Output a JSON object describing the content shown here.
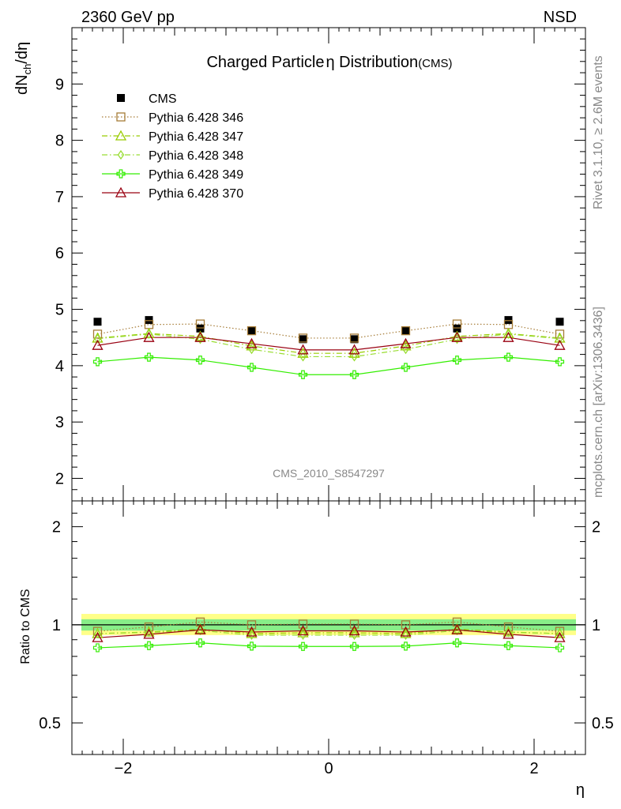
{
  "header": {
    "left": "2360 GeV pp",
    "right": "NSD"
  },
  "chart_title": {
    "main": "Charged Particle",
    "eta": "η",
    "rest": " Distribution",
    "suffix": "(CMS)"
  },
  "ylabel_top": {
    "base": "dN",
    "sub": "ch",
    "tail": "/dη"
  },
  "ylabel_bottom": "Ratio to CMS",
  "xlabel": "η",
  "watermark": "CMS_2010_S8547297",
  "side_text_top": "Rivet 3.1.10, ≥ 2.6M events",
  "side_text_bottom": "mcplots.cern.ch [arXiv:1306.3436]",
  "colors": {
    "cms": "#000000",
    "p346": "#a67c37",
    "p347": "#99cc00",
    "p348": "#99dd33",
    "p349": "#33ee00",
    "p370": "#990011",
    "band_outer": "#ffff88",
    "band_inner": "#88ee88"
  },
  "chart_data": [
    {
      "type": "scatter",
      "title": "Charged Particle η Distribution (CMS)",
      "xlabel": "η",
      "ylabel": "dNch/dη",
      "xlim": [
        -2.5,
        2.5
      ],
      "ylim": [
        1.6,
        10
      ],
      "yticks": [
        2,
        3,
        4,
        5,
        6,
        7,
        8,
        9
      ],
      "legend_placement": "top-left",
      "x": [
        -2.25,
        -1.75,
        -1.25,
        -0.75,
        -0.25,
        0.25,
        0.75,
        1.25,
        1.75,
        2.25
      ],
      "series": [
        {
          "name": "CMS",
          "key": "cms",
          "marker": "filled-square",
          "line": "none",
          "values": [
            4.78,
            4.81,
            4.66,
            4.62,
            4.47,
            4.47,
            4.62,
            4.66,
            4.81,
            4.78
          ]
        },
        {
          "name": "Pythia 6.428 346",
          "key": "p346",
          "marker": "open-square",
          "line": "dotted",
          "values": [
            4.56,
            4.73,
            4.74,
            4.62,
            4.49,
            4.49,
            4.62,
            4.74,
            4.73,
            4.56
          ]
        },
        {
          "name": "Pythia 6.428 347",
          "key": "p347",
          "marker": "open-triangle",
          "line": "dash-dot",
          "values": [
            4.49,
            4.57,
            4.52,
            4.35,
            4.22,
            4.22,
            4.35,
            4.52,
            4.57,
            4.49
          ]
        },
        {
          "name": "Pythia 6.428 348",
          "key": "p348",
          "marker": "open-diamond",
          "line": "dash-dot",
          "values": [
            4.48,
            4.56,
            4.47,
            4.29,
            4.16,
            4.16,
            4.29,
            4.47,
            4.56,
            4.48
          ]
        },
        {
          "name": "Pythia 6.428 349",
          "key": "p349",
          "marker": "open-cross",
          "line": "solid",
          "values": [
            4.07,
            4.15,
            4.1,
            3.97,
            3.84,
            3.84,
            3.97,
            4.1,
            4.15,
            4.07
          ]
        },
        {
          "name": "Pythia 6.428 370",
          "key": "p370",
          "marker": "open-triangle",
          "line": "solid",
          "values": [
            4.36,
            4.5,
            4.5,
            4.39,
            4.28,
            4.28,
            4.39,
            4.5,
            4.5,
            4.36
          ]
        }
      ]
    },
    {
      "type": "scatter",
      "xlabel": "η",
      "ylabel": "Ratio to CMS",
      "xlim": [
        -2.5,
        2.5
      ],
      "ylim": [
        0.4,
        2.4
      ],
      "yscale": "log",
      "yticks": [
        0.5,
        1,
        2
      ],
      "x": [
        -2.25,
        -1.75,
        -1.25,
        -0.75,
        -0.25,
        0.25,
        0.75,
        1.25,
        1.75,
        2.25
      ],
      "reference_line": 1,
      "bands": {
        "inner": [
          0.96,
          1.04
        ],
        "outer": [
          0.93,
          1.08
        ]
      },
      "series": [
        {
          "name": "Pythia 6.428 346",
          "key": "p346",
          "marker": "open-square",
          "line": "dotted",
          "values": [
            0.955,
            0.985,
            1.02,
            1.0,
            1.005,
            1.005,
            1.0,
            1.02,
            0.985,
            0.955
          ]
        },
        {
          "name": "Pythia 6.428 347",
          "key": "p347",
          "marker": "open-triangle",
          "line": "dash-dot",
          "values": [
            0.94,
            0.95,
            0.97,
            0.94,
            0.945,
            0.945,
            0.94,
            0.97,
            0.95,
            0.94
          ]
        },
        {
          "name": "Pythia 6.428 348",
          "key": "p348",
          "marker": "open-diamond",
          "line": "dash-dot",
          "values": [
            0.94,
            0.948,
            0.96,
            0.93,
            0.93,
            0.93,
            0.93,
            0.96,
            0.948,
            0.94
          ]
        },
        {
          "name": "Pythia 6.428 349",
          "key": "p349",
          "marker": "open-cross",
          "line": "solid",
          "values": [
            0.85,
            0.863,
            0.88,
            0.86,
            0.858,
            0.858,
            0.86,
            0.88,
            0.863,
            0.85
          ]
        },
        {
          "name": "Pythia 6.428 370",
          "key": "p370",
          "marker": "open-triangle",
          "line": "solid",
          "values": [
            0.913,
            0.935,
            0.965,
            0.95,
            0.958,
            0.958,
            0.95,
            0.965,
            0.935,
            0.913
          ]
        }
      ]
    }
  ]
}
